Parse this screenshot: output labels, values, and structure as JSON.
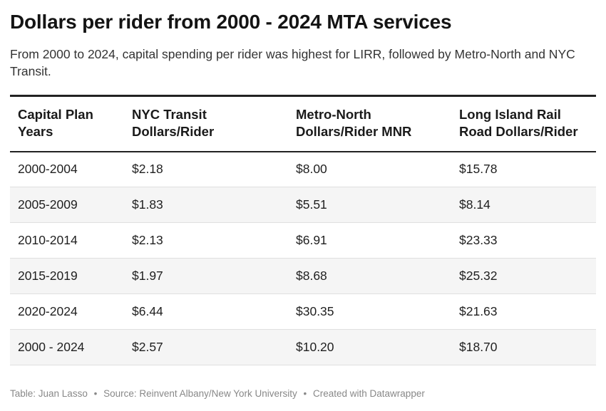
{
  "title": "Dollars per rider from 2000 - 2024 MTA services",
  "subtitle": "From 2000 to 2024, capital spending per rider was highest for LIRR, followed by Metro-North and NYC Transit.",
  "table": {
    "headers": [
      "Capital Plan Years",
      "NYC Transit Dollars/Rider",
      "Metro-North Dollars/Rider MNR",
      "Long Island Rail Road Dollars/Rider"
    ],
    "rows": [
      [
        "2000-2004",
        "$2.18",
        "$8.00",
        "$15.78"
      ],
      [
        "2005-2009",
        "$1.83",
        "$5.51",
        "$8.14"
      ],
      [
        "2010-2014",
        "$2.13",
        "$6.91",
        "$23.33"
      ],
      [
        "2015-2019",
        "$1.97",
        "$8.68",
        "$25.32"
      ],
      [
        "2020-2024",
        "$6.44",
        "$30.35",
        "$21.63"
      ],
      [
        "2000 - 2024",
        "$2.57",
        "$10.20",
        "$18.70"
      ]
    ]
  },
  "footer": {
    "table_credit": "Table: Juan Lasso",
    "source": "Source: Reinvent Albany/New York University",
    "created_with": "Created with Datawrapper",
    "separator": "•"
  },
  "chart_data": {
    "type": "table",
    "title": "Dollars per rider from 2000 - 2024 MTA services",
    "subtitle": "From 2000 to 2024, capital spending per rider was highest for LIRR, followed by Metro-North and NYC Transit.",
    "columns": [
      "Capital Plan Years",
      "NYC Transit Dollars/Rider",
      "Metro-North Dollars/Rider MNR",
      "Long Island Rail Road Dollars/Rider"
    ],
    "categories": [
      "2000-2004",
      "2005-2009",
      "2010-2014",
      "2015-2019",
      "2020-2024",
      "2000 - 2024"
    ],
    "series": [
      {
        "name": "NYC Transit Dollars/Rider",
        "values": [
          2.18,
          1.83,
          2.13,
          1.97,
          6.44,
          2.57
        ]
      },
      {
        "name": "Metro-North Dollars/Rider MNR",
        "values": [
          8.0,
          5.51,
          6.91,
          8.68,
          30.35,
          10.2
        ]
      },
      {
        "name": "Long Island Rail Road Dollars/Rider",
        "values": [
          15.78,
          8.14,
          23.33,
          25.32,
          21.63,
          18.7
        ]
      }
    ],
    "zebra_stripe_color": "#f5f5f5",
    "rule_color": "#222222"
  }
}
